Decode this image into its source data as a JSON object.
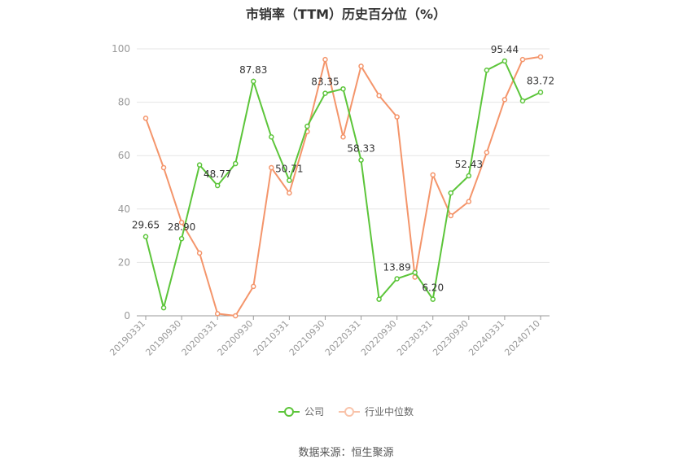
{
  "title": "市销率（TTM）历史百分位（%）",
  "source": "数据来源：恒生聚源",
  "chart_data": {
    "type": "line",
    "ylim": [
      0,
      100
    ],
    "yticks": [
      0,
      20,
      40,
      60,
      80,
      100
    ],
    "xtick_labels": [
      "20190331",
      "20190930",
      "20200331",
      "20200930",
      "20210331",
      "20210930",
      "20220331",
      "20220930",
      "20230331",
      "20230930",
      "20240331",
      "20240710"
    ],
    "grid": true,
    "legend_position": "bottom",
    "series": [
      {
        "name": "公司",
        "color": "#5cc53a",
        "values": [
          29.65,
          3,
          28.9,
          56.5,
          48.77,
          57,
          87.83,
          67,
          50.71,
          71,
          83.35,
          85,
          58.33,
          6.2,
          13.89,
          16.2,
          6.2,
          46,
          52.43,
          92,
          95.44,
          80.5,
          83.72
        ],
        "labels": [
          "29.65",
          null,
          "28.90",
          null,
          "48.77",
          null,
          "87.83",
          null,
          "50.71",
          null,
          "83.35",
          null,
          "58.33",
          null,
          "13.89",
          null,
          "6.20",
          null,
          "52.43",
          null,
          "95.44",
          null,
          "83.72"
        ]
      },
      {
        "name": "行业中位数",
        "color": "#f4956b",
        "values": [
          74,
          55.5,
          35,
          23.5,
          0.8,
          0,
          11,
          55.5,
          46,
          69,
          96,
          67,
          93.5,
          82.5,
          74.5,
          14.5,
          52.8,
          37.5,
          42.8,
          61.2,
          81,
          96,
          97
        ]
      }
    ]
  }
}
